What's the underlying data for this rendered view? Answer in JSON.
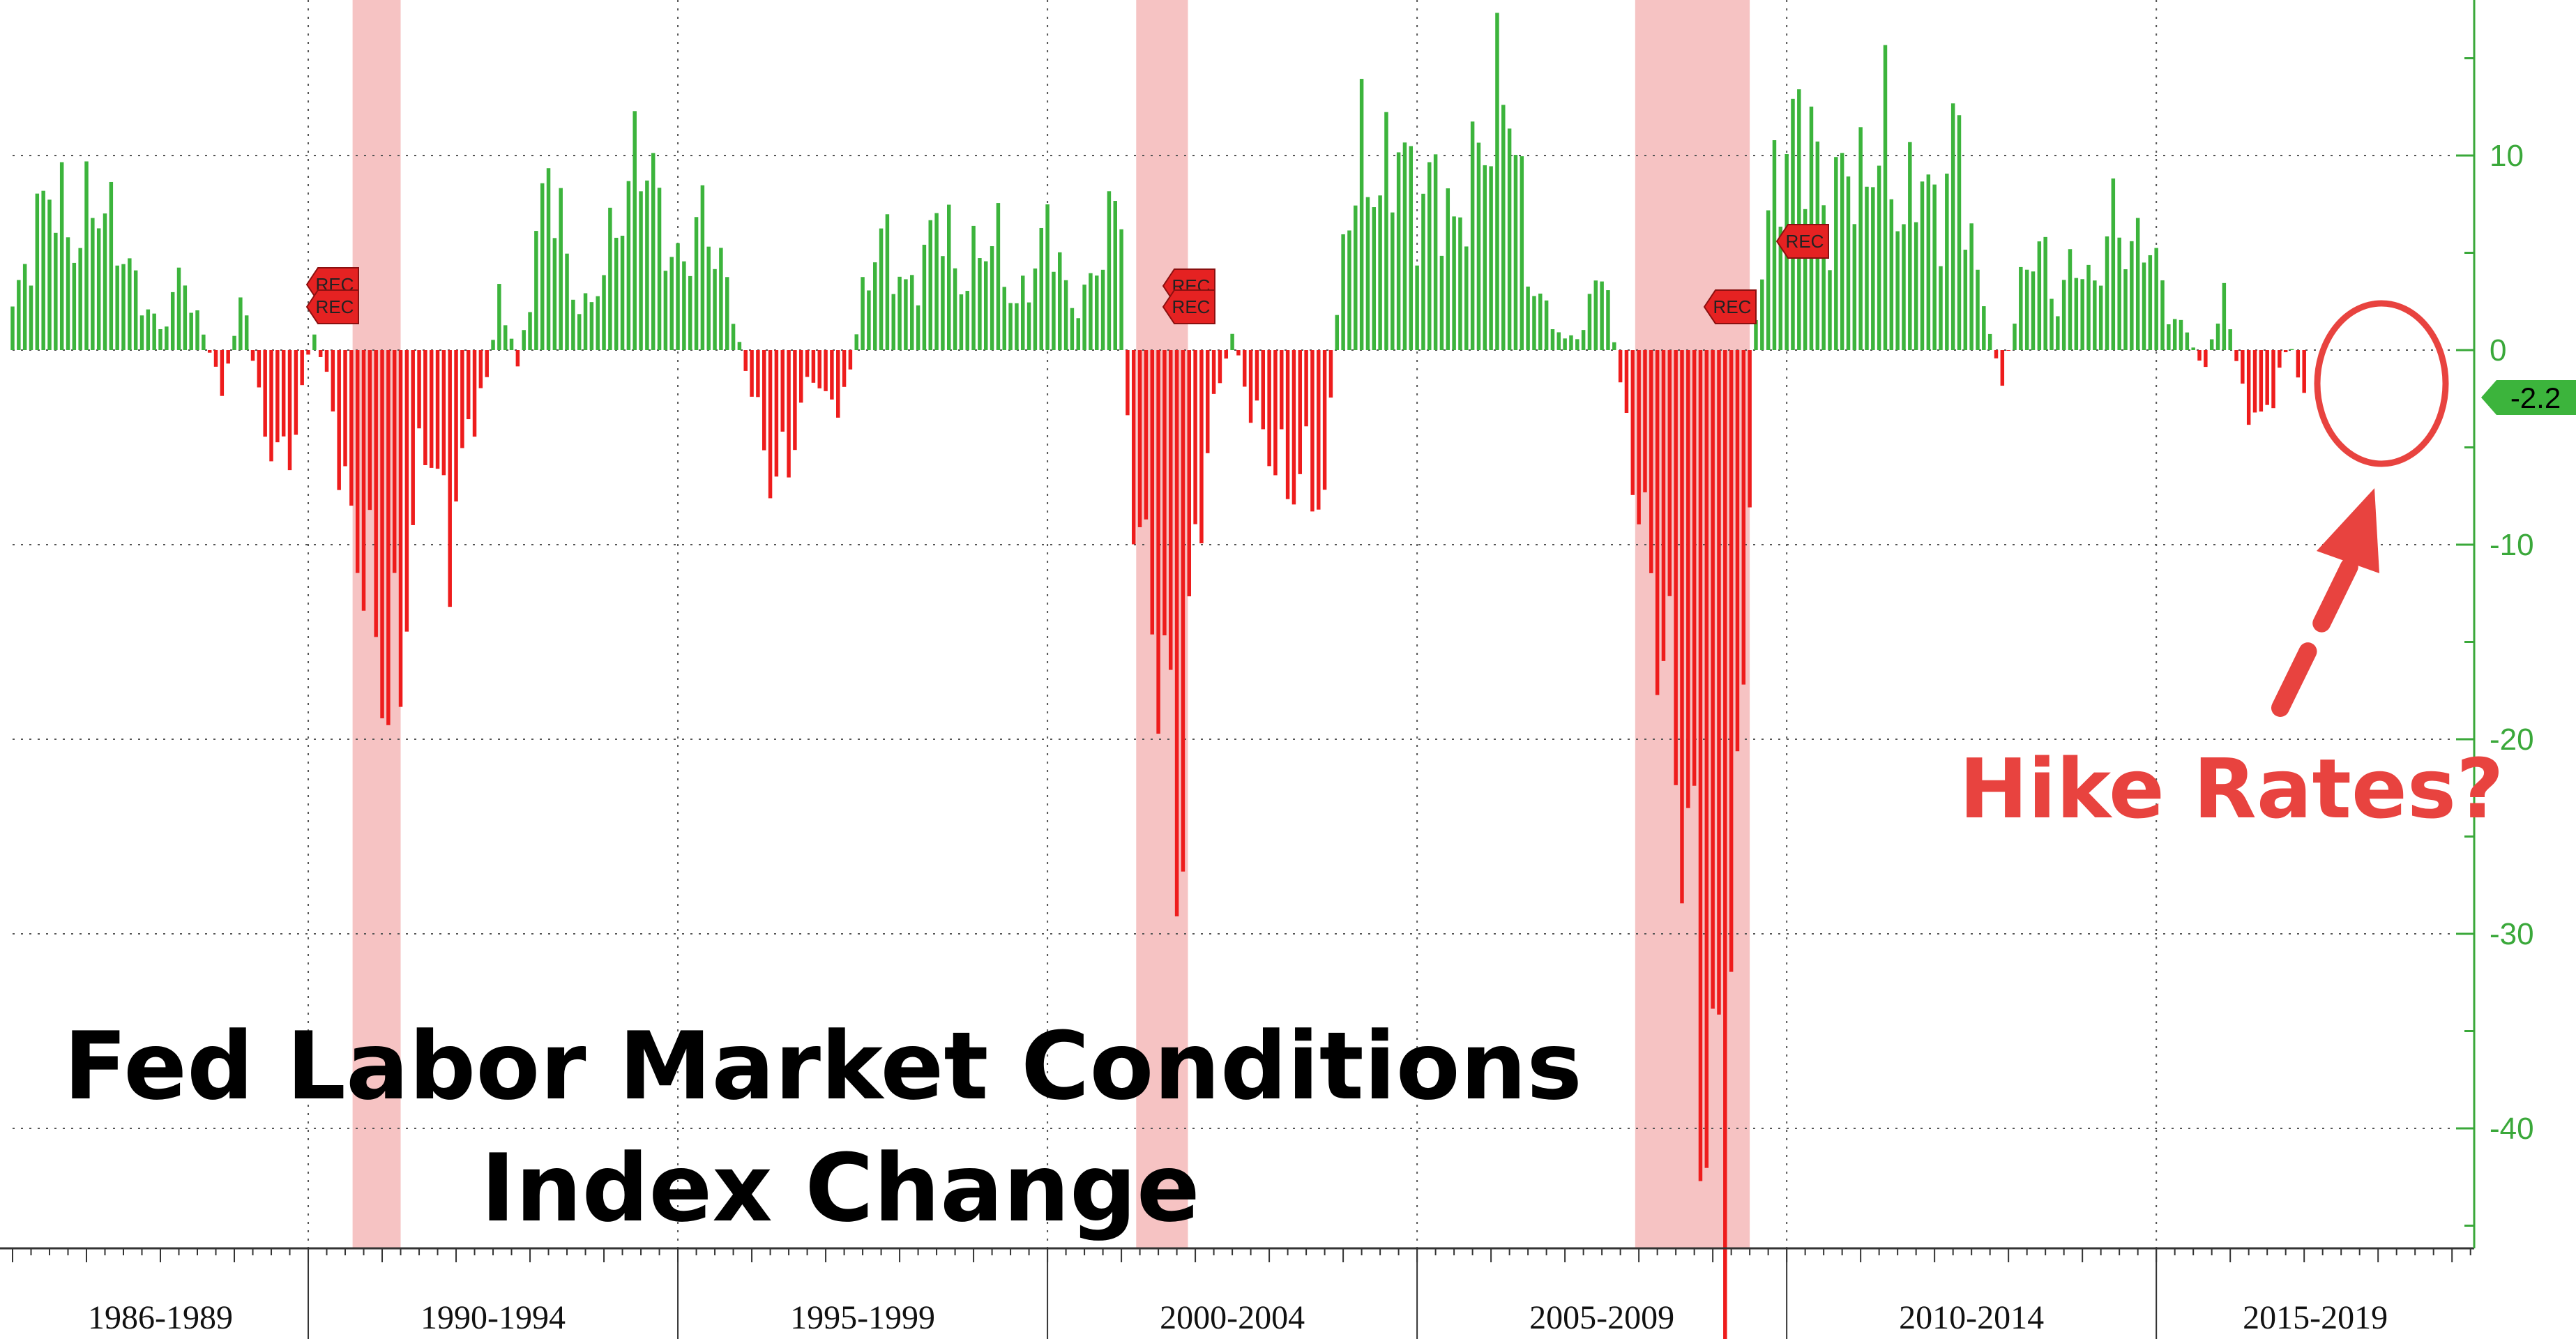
{
  "chart_data": {
    "type": "bar",
    "title": "Fed Labor Market Conditions",
    "subtitle": "Index Change",
    "annotation": "Hike Rates?",
    "last_value_label": "-2.2",
    "recession_label": "REC",
    "colors": {
      "positive": "#3cb43c",
      "negative": "#ee1c1c",
      "recession_band": "#f4b8b8",
      "axis": "#3aa83a",
      "annotation": "#e8433f",
      "badge": "#e52222"
    },
    "y_axis": {
      "side": "right",
      "range": [
        -46,
        18
      ],
      "ticks": [
        10,
        0,
        -10,
        -20,
        -30,
        -40
      ],
      "tick_labels": [
        "10",
        "0",
        "-10",
        "-20",
        "-30",
        "-40"
      ]
    },
    "x_axis": {
      "range": [
        1986.0,
        2019.3
      ],
      "groups": [
        {
          "label": "1986-1989",
          "start": 1986.0,
          "end": 1990.0
        },
        {
          "label": "1990-1994",
          "start": 1990.0,
          "end": 1995.0
        },
        {
          "label": "1995-1999",
          "start": 1995.0,
          "end": 2000.0
        },
        {
          "label": "2000-2004",
          "start": 2000.0,
          "end": 2005.0
        },
        {
          "label": "2005-2009",
          "start": 2005.0,
          "end": 2010.0
        },
        {
          "label": "2010-2014",
          "start": 2010.0,
          "end": 2015.0
        },
        {
          "label": "2015-2019",
          "start": 2015.0,
          "end": 2019.3
        }
      ]
    },
    "recessions": [
      {
        "start": 1990.6,
        "end": 1991.25
      },
      {
        "start": 2001.2,
        "end": 2001.9
      },
      {
        "start": 2007.95,
        "end": 2009.5
      }
    ],
    "grid": true,
    "legend": "none",
    "keypoints": [
      [
        1986.0,
        2
      ],
      [
        1986.3,
        6
      ],
      [
        1986.55,
        9
      ],
      [
        1986.8,
        5
      ],
      [
        1987.1,
        8
      ],
      [
        1987.4,
        6
      ],
      [
        1987.7,
        3
      ],
      [
        1988.0,
        1
      ],
      [
        1988.3,
        4
      ],
      [
        1988.6,
        0.5
      ],
      [
        1988.85,
        -2
      ],
      [
        1989.1,
        3
      ],
      [
        1989.35,
        -3
      ],
      [
        1989.6,
        -6
      ],
      [
        1989.85,
        -4
      ],
      [
        1990.05,
        1
      ],
      [
        1990.3,
        -2
      ],
      [
        1990.5,
        -8
      ],
      [
        1990.75,
        -11
      ],
      [
        1990.95,
        -15
      ],
      [
        1991.15,
        -19
      ],
      [
        1991.35,
        -12
      ],
      [
        1991.55,
        -4
      ],
      [
        1991.75,
        -7
      ],
      [
        1991.95,
        -10
      ],
      [
        1992.15,
        -4
      ],
      [
        1992.4,
        -2
      ],
      [
        1992.6,
        3
      ],
      [
        1992.85,
        -1
      ],
      [
        1993.1,
        6
      ],
      [
        1993.3,
        10
      ],
      [
        1993.55,
        3
      ],
      [
        1993.8,
        2
      ],
      [
        1994.05,
        5
      ],
      [
        1994.3,
        8
      ],
      [
        1994.55,
        11
      ],
      [
        1994.8,
        6
      ],
      [
        1995.05,
        4
      ],
      [
        1995.3,
        7
      ],
      [
        1995.55,
        5
      ],
      [
        1995.8,
        1
      ],
      [
        1996.05,
        -3
      ],
      [
        1996.3,
        -7
      ],
      [
        1996.55,
        -5
      ],
      [
        1996.8,
        -1
      ],
      [
        1997.05,
        -3
      ],
      [
        1997.3,
        -2
      ],
      [
        1997.55,
        4
      ],
      [
        1997.8,
        6
      ],
      [
        1998.05,
        3
      ],
      [
        1998.3,
        4
      ],
      [
        1998.55,
        8
      ],
      [
        1998.8,
        3
      ],
      [
        1999.05,
        5
      ],
      [
        1999.3,
        6
      ],
      [
        1999.55,
        2
      ],
      [
        1999.8,
        4
      ],
      [
        2000.05,
        7
      ],
      [
        2000.3,
        2
      ],
      [
        2000.55,
        3
      ],
      [
        2000.8,
        6
      ],
      [
        2001.0,
        8
      ],
      [
        2001.1,
        -6
      ],
      [
        2001.35,
        -12
      ],
      [
        2001.6,
        -18
      ],
      [
        2001.8,
        -26
      ],
      [
        2002.0,
        -10
      ],
      [
        2002.25,
        -3
      ],
      [
        2002.5,
        1
      ],
      [
        2002.75,
        -3
      ],
      [
        2003.0,
        -5
      ],
      [
        2003.25,
        -7
      ],
      [
        2003.5,
        -6
      ],
      [
        2003.75,
        -8
      ],
      [
        2004.0,
        6
      ],
      [
        2004.25,
        10
      ],
      [
        2004.5,
        8
      ],
      [
        2004.75,
        11
      ],
      [
        2005.0,
        7
      ],
      [
        2005.25,
        9
      ],
      [
        2005.5,
        6
      ],
      [
        2005.75,
        9
      ],
      [
        2006.0,
        12
      ],
      [
        2006.25,
        14
      ],
      [
        2006.5,
        4
      ],
      [
        2006.75,
        2
      ],
      [
        2007.0,
        0.5
      ],
      [
        2007.25,
        1
      ],
      [
        2007.5,
        5
      ],
      [
        2007.75,
        -2
      ],
      [
        2008.0,
        -8
      ],
      [
        2008.25,
        -14
      ],
      [
        2008.5,
        -20
      ],
      [
        2008.75,
        -30
      ],
      [
        2009.0,
        -42
      ],
      [
        2009.2,
        -38
      ],
      [
        2009.4,
        -20
      ],
      [
        2009.55,
        1
      ],
      [
        2009.8,
        8
      ],
      [
        2010.05,
        11
      ],
      [
        2010.3,
        12
      ],
      [
        2010.55,
        6
      ],
      [
        2010.8,
        10
      ],
      [
        2011.05,
        8
      ],
      [
        2011.3,
        12
      ],
      [
        2011.55,
        6
      ],
      [
        2011.8,
        10
      ],
      [
        2012.05,
        6
      ],
      [
        2012.3,
        12
      ],
      [
        2012.55,
        4
      ],
      [
        2012.8,
        0.5
      ],
      [
        2012.9,
        -2
      ],
      [
        2013.15,
        3
      ],
      [
        2013.4,
        6
      ],
      [
        2013.65,
        2
      ],
      [
        2013.9,
        5
      ],
      [
        2014.15,
        3
      ],
      [
        2014.4,
        7
      ],
      [
        2014.65,
        5
      ],
      [
        2014.9,
        6
      ],
      [
        2015.15,
        2
      ],
      [
        2015.4,
        1
      ],
      [
        2015.65,
        -1
      ],
      [
        2015.9,
        3
      ],
      [
        2016.15,
        -2
      ],
      [
        2016.4,
        -4
      ],
      [
        2016.6,
        -2
      ],
      [
        2016.8,
        0.5
      ],
      [
        2017.0,
        -2.2
      ]
    ]
  }
}
